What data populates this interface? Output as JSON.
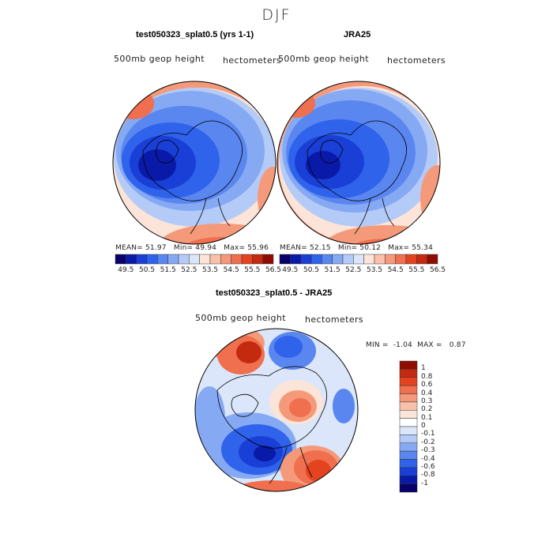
{
  "figure": {
    "season": "DJF"
  },
  "chart_data": [
    {
      "type": "heatmap",
      "projection": "polar-stereographic-north",
      "title": "test050323_splat0.5 (yrs 1-1)",
      "field_label": "500mb geop height",
      "units": "hectometers",
      "stats": {
        "mean_label": "MEAN=",
        "mean": "51.97",
        "min_label": "Min=",
        "min": "49.94",
        "max_label": "Max=",
        "max": "55.96"
      },
      "colorbar": {
        "orientation": "horizontal",
        "levels": [
          "49.5",
          "50.5",
          "51.5",
          "52.5",
          "53.5",
          "54.5",
          "55.5",
          "56.5"
        ],
        "colors": [
          "#08006b",
          "#0a1aa8",
          "#1a3fd6",
          "#2f63eb",
          "#5a86f0",
          "#86a9f4",
          "#b4cbf7",
          "#dbe6fa",
          "#fde4d8",
          "#f9c1aa",
          "#f49a7b",
          "#ef6f4e",
          "#e3431f",
          "#c42a10",
          "#8e0d00"
        ]
      }
    },
    {
      "type": "heatmap",
      "projection": "polar-stereographic-north",
      "title": "JRA25",
      "field_label": "500mb geop height",
      "units": "hectometers",
      "stats": {
        "mean_label": "MEAN=",
        "mean": "52.15",
        "min_label": "Min=",
        "min": "50.12",
        "max_label": "Max=",
        "max": "55.34"
      },
      "colorbar": {
        "orientation": "horizontal",
        "levels": [
          "49.5",
          "50.5",
          "51.5",
          "52.5",
          "53.5",
          "54.5",
          "55.5",
          "56.5"
        ],
        "colors": [
          "#08006b",
          "#0a1aa8",
          "#1a3fd6",
          "#2f63eb",
          "#5a86f0",
          "#86a9f4",
          "#b4cbf7",
          "#dbe6fa",
          "#fde4d8",
          "#f9c1aa",
          "#f49a7b",
          "#ef6f4e",
          "#e3431f",
          "#c42a10",
          "#8e0d00"
        ]
      }
    },
    {
      "type": "heatmap",
      "projection": "polar-stereographic-north",
      "title": "test050323_splat0.5 - JRA25",
      "field_label": "500mb geop height",
      "units": "hectometers",
      "stats": {
        "min_label": "MIN =",
        "min": "-1.04",
        "max_label": "MAX =",
        "max": "0.87"
      },
      "colorbar": {
        "orientation": "vertical",
        "levels": [
          "1",
          "0.8",
          "0.6",
          "0.4",
          "0.3",
          "0.2",
          "0.1",
          "0",
          "-0.1",
          "-0.2",
          "-0.3",
          "-0.4",
          "-0.6",
          "-0.8",
          "-1"
        ],
        "colors": [
          "#8e0d00",
          "#c42a10",
          "#e3431f",
          "#ef6f4e",
          "#f49a7b",
          "#f9c1aa",
          "#fde4d8",
          "#ffffff",
          "#dbe6fa",
          "#b4cbf7",
          "#86a9f4",
          "#5a86f0",
          "#2f63eb",
          "#1a3fd6",
          "#0a1aa8",
          "#08006b"
        ]
      }
    }
  ]
}
